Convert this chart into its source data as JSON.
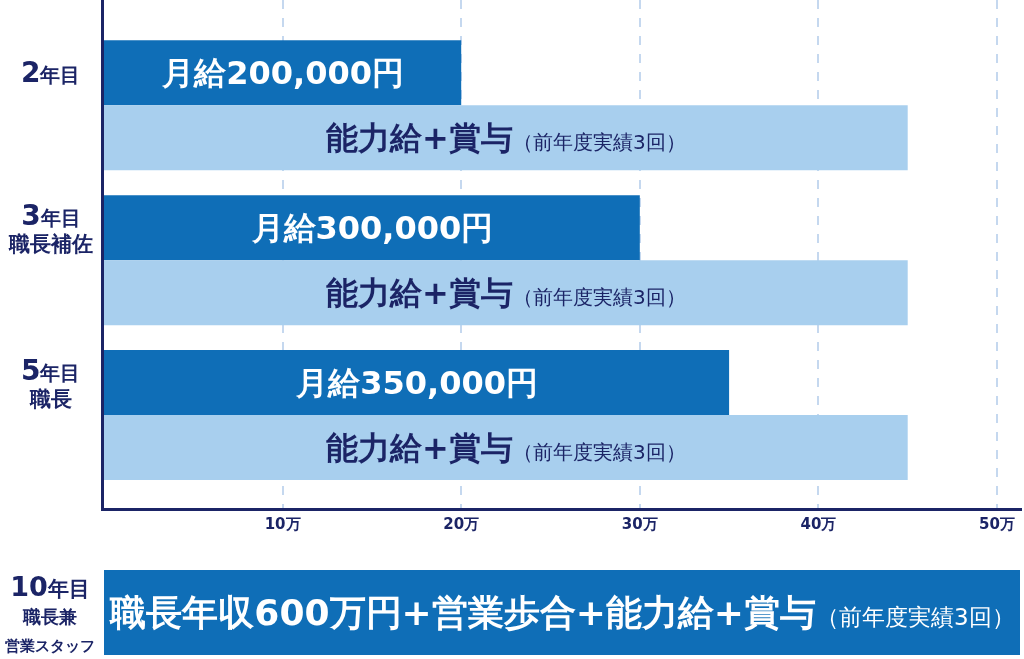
{
  "chart_data": [
    {
      "type": "bar",
      "orientation": "horizontal",
      "categories": [
        "2年目",
        "3年目職長補佐",
        "5年目職長"
      ],
      "series": [
        {
          "color": "#0f6eb7",
          "values": [
            20,
            30,
            35
          ],
          "value_labels": [
            "月給200,000円",
            "月給300,000円",
            "月給350,000円"
          ]
        },
        {
          "color": "#a8cfee",
          "values": [
            45,
            45,
            45
          ],
          "value_labels": [
            "能力給+賞与（前年度実績3回）",
            "能力給+賞与（前年度実績3回）",
            "能力給+賞与（前年度実績3回）"
          ]
        }
      ],
      "xlim": [
        0,
        51.4
      ],
      "xticks": [
        {
          "value": 10,
          "label": "10万"
        },
        {
          "value": 20,
          "label": "20万"
        },
        {
          "value": 30,
          "label": "30万"
        },
        {
          "value": 40,
          "label": "40万"
        },
        {
          "value": 50,
          "label": "50万"
        }
      ],
      "grid": "x"
    },
    {
      "type": "other",
      "title": "10年目職長兼営業スタッフ",
      "annotations": [
        "職長年収600万円+営業歩合+能力給+賞与（前年度実績3回）"
      ]
    }
  ]
}
